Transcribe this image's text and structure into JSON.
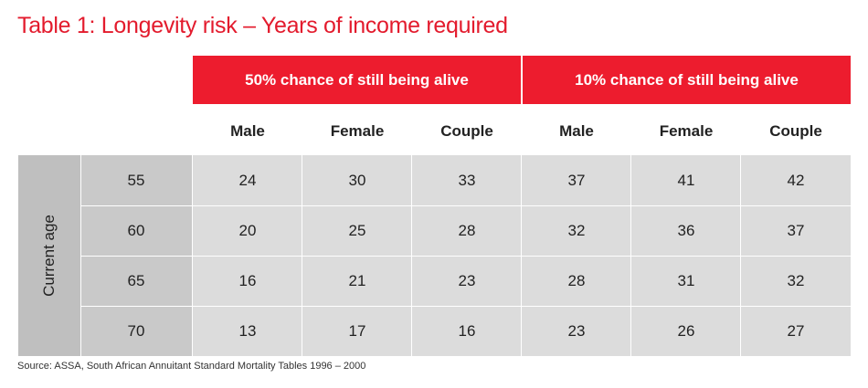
{
  "title": "Table 1: Longevity risk – Years of income required",
  "group_headers": [
    "50% chance of still being alive",
    "10% chance of still being alive"
  ],
  "column_headers": [
    "Male",
    "Female",
    "Couple",
    "Male",
    "Female",
    "Couple"
  ],
  "row_group_label": "Current age",
  "rows": [
    {
      "age": "55",
      "values": [
        "24",
        "30",
        "33",
        "37",
        "41",
        "42"
      ]
    },
    {
      "age": "60",
      "values": [
        "20",
        "25",
        "28",
        "32",
        "36",
        "37"
      ]
    },
    {
      "age": "65",
      "values": [
        "16",
        "21",
        "23",
        "28",
        "31",
        "32"
      ]
    },
    {
      "age": "70",
      "values": [
        "13",
        "17",
        "16",
        "23",
        "26",
        "27"
      ]
    }
  ],
  "source": "Source: ASSA, South African Annuitant Standard Mortality Tables 1996 – 2000",
  "colors": {
    "accent": "#ed1c2e",
    "title": "#e31b2d",
    "cell_bg": "#dcdcdc",
    "age_bg": "#c9c9c9",
    "side_bg": "#bfbfbf"
  }
}
